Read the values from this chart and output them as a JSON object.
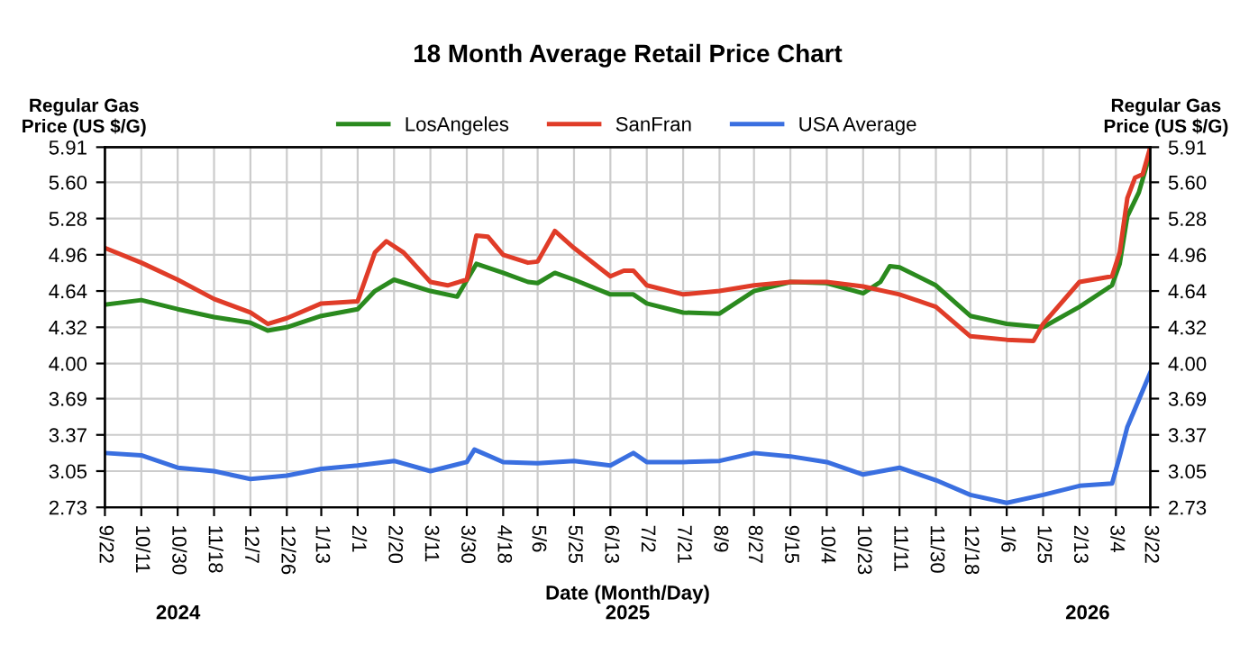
{
  "chart_data": {
    "type": "line",
    "title": "18 Month Average Retail Price Chart",
    "xlabel": "Date (Month/Day)",
    "ylabel": "Regular Gas\nPrice (US $/G)",
    "y2label": "Regular Gas\nPrice (US $/G)",
    "annotations": [
      "2024",
      "2025",
      "2026"
    ],
    "xlim": [
      "2024-09-22",
      "2026-03-22"
    ],
    "xticks": [
      {
        "value": "2024-09-22",
        "label": "9/22"
      },
      {
        "value": "2024-10-11",
        "label": "10/11"
      },
      {
        "value": "2024-10-30",
        "label": "10/30"
      },
      {
        "value": "2024-11-18",
        "label": "11/18"
      },
      {
        "value": "2024-12-07",
        "label": "12/7"
      },
      {
        "value": "2024-12-26",
        "label": "12/26"
      },
      {
        "value": "2025-01-13",
        "label": "1/13"
      },
      {
        "value": "2025-02-01",
        "label": "2/1"
      },
      {
        "value": "2025-02-20",
        "label": "2/20"
      },
      {
        "value": "2025-03-11",
        "label": "3/11"
      },
      {
        "value": "2025-03-30",
        "label": "3/30"
      },
      {
        "value": "2025-04-18",
        "label": "4/18"
      },
      {
        "value": "2025-05-06",
        "label": "5/6"
      },
      {
        "value": "2025-05-25",
        "label": "5/25"
      },
      {
        "value": "2025-06-13",
        "label": "6/13"
      },
      {
        "value": "2025-07-02",
        "label": "7/2"
      },
      {
        "value": "2025-07-21",
        "label": "7/21"
      },
      {
        "value": "2025-08-09",
        "label": "8/9"
      },
      {
        "value": "2025-08-27",
        "label": "8/27"
      },
      {
        "value": "2025-09-15",
        "label": "9/15"
      },
      {
        "value": "2025-10-04",
        "label": "10/4"
      },
      {
        "value": "2025-10-23",
        "label": "10/23"
      },
      {
        "value": "2025-11-11",
        "label": "11/11"
      },
      {
        "value": "2025-11-30",
        "label": "11/30"
      },
      {
        "value": "2025-12-18",
        "label": "12/18"
      },
      {
        "value": "2026-01-06",
        "label": "1/6"
      },
      {
        "value": "2026-01-25",
        "label": "1/25"
      },
      {
        "value": "2026-02-13",
        "label": "2/13"
      },
      {
        "value": "2026-03-04",
        "label": "3/4"
      },
      {
        "value": "2026-03-22",
        "label": "3/22"
      }
    ],
    "ylim": [
      2.73,
      5.91
    ],
    "yticks": [
      2.73,
      3.05,
      3.37,
      3.69,
      {
        "value": 4.0,
        "label": "4.00"
      },
      4.32,
      4.64,
      4.96,
      5.28,
      {
        "value": 5.6,
        "label": "5.60"
      },
      5.91
    ],
    "y2lim": [
      2.73,
      5.91
    ],
    "y2ticks": [
      2.73,
      3.05,
      3.37,
      3.69,
      {
        "value": 4.0,
        "label": "4.00"
      },
      4.32,
      4.64,
      4.96,
      5.28,
      {
        "value": 5.6,
        "label": "5.60"
      },
      5.91
    ],
    "grid": true,
    "legend": "top",
    "line_style": "solid",
    "marker": "none",
    "series": [
      {
        "name": "LosAngeles",
        "color": "#2a8a1e",
        "x": [
          "2024-09-22",
          "2024-10-11",
          "2024-10-30",
          "2024-11-18",
          "2024-12-07",
          "2024-12-16",
          "2024-12-26",
          "2025-01-13",
          "2025-02-01",
          "2025-02-10",
          "2025-02-20",
          "2025-03-11",
          "2025-03-25",
          "2025-04-04",
          "2025-04-18",
          "2025-05-01",
          "2025-05-06",
          "2025-05-15",
          "2025-05-25",
          "2025-06-13",
          "2025-06-25",
          "2025-07-02",
          "2025-07-21",
          "2025-08-09",
          "2025-08-27",
          "2025-09-15",
          "2025-10-04",
          "2025-10-23",
          "2025-11-01",
          "2025-11-06",
          "2025-11-11",
          "2025-11-30",
          "2025-12-18",
          "2026-01-06",
          "2026-01-25",
          "2026-02-13",
          "2026-03-02",
          "2026-03-06",
          "2026-03-10",
          "2026-03-16",
          "2026-03-22"
        ],
        "values": [
          4.52,
          4.56,
          4.48,
          4.41,
          4.36,
          4.29,
          4.32,
          4.42,
          4.48,
          4.64,
          4.74,
          4.64,
          4.59,
          4.88,
          4.8,
          4.72,
          4.71,
          4.8,
          4.74,
          4.61,
          4.61,
          4.53,
          4.45,
          4.44,
          4.64,
          4.72,
          4.71,
          4.62,
          4.72,
          4.86,
          4.85,
          4.69,
          4.42,
          4.35,
          4.32,
          4.5,
          4.69,
          4.88,
          5.3,
          5.51,
          5.86
        ]
      },
      {
        "name": "SanFran",
        "color": "#e03c28",
        "x": [
          "2024-09-22",
          "2024-10-11",
          "2024-10-30",
          "2024-11-18",
          "2024-12-07",
          "2024-12-16",
          "2024-12-26",
          "2025-01-13",
          "2025-02-01",
          "2025-02-10",
          "2025-02-16",
          "2025-02-25",
          "2025-03-11",
          "2025-03-20",
          "2025-03-30",
          "2025-04-04",
          "2025-04-10",
          "2025-04-18",
          "2025-05-01",
          "2025-05-06",
          "2025-05-15",
          "2025-05-25",
          "2025-06-13",
          "2025-06-20",
          "2025-06-25",
          "2025-07-02",
          "2025-07-21",
          "2025-08-09",
          "2025-08-27",
          "2025-09-15",
          "2025-10-04",
          "2025-10-23",
          "2025-11-11",
          "2025-11-30",
          "2025-12-18",
          "2026-01-06",
          "2026-01-20",
          "2026-01-25",
          "2026-02-13",
          "2026-03-02",
          "2026-03-06",
          "2026-03-10",
          "2026-03-14",
          "2026-03-18",
          "2026-03-22"
        ],
        "values": [
          5.02,
          4.89,
          4.74,
          4.57,
          4.45,
          4.35,
          4.4,
          4.53,
          4.55,
          4.98,
          5.08,
          4.98,
          4.72,
          4.69,
          4.74,
          5.13,
          5.12,
          4.96,
          4.89,
          4.9,
          5.17,
          5.02,
          4.77,
          4.82,
          4.82,
          4.69,
          4.61,
          4.64,
          4.69,
          4.72,
          4.72,
          4.68,
          4.61,
          4.5,
          4.24,
          4.21,
          4.2,
          4.35,
          4.72,
          4.77,
          4.98,
          5.46,
          5.64,
          5.67,
          5.91
        ]
      },
      {
        "name": "USA Average",
        "color": "#3a6fe0",
        "x": [
          "2024-09-22",
          "2024-10-11",
          "2024-10-30",
          "2024-11-18",
          "2024-12-07",
          "2024-12-26",
          "2025-01-13",
          "2025-02-01",
          "2025-02-20",
          "2025-03-11",
          "2025-03-30",
          "2025-04-03",
          "2025-04-18",
          "2025-05-06",
          "2025-05-25",
          "2025-06-13",
          "2025-06-25",
          "2025-07-02",
          "2025-07-21",
          "2025-08-09",
          "2025-08-27",
          "2025-09-15",
          "2025-10-04",
          "2025-10-23",
          "2025-11-11",
          "2025-11-30",
          "2025-12-18",
          "2026-01-06",
          "2026-01-25",
          "2026-02-13",
          "2026-03-02",
          "2026-03-06",
          "2026-03-10",
          "2026-03-16",
          "2026-03-22"
        ],
        "values": [
          3.21,
          3.19,
          3.08,
          3.05,
          2.98,
          3.01,
          3.07,
          3.1,
          3.14,
          3.05,
          3.13,
          3.24,
          3.13,
          3.12,
          3.14,
          3.1,
          3.21,
          3.13,
          3.13,
          3.14,
          3.21,
          3.18,
          3.13,
          3.02,
          3.08,
          2.97,
          2.84,
          2.77,
          2.84,
          2.92,
          2.94,
          3.18,
          3.44,
          3.68,
          3.92
        ]
      }
    ]
  }
}
